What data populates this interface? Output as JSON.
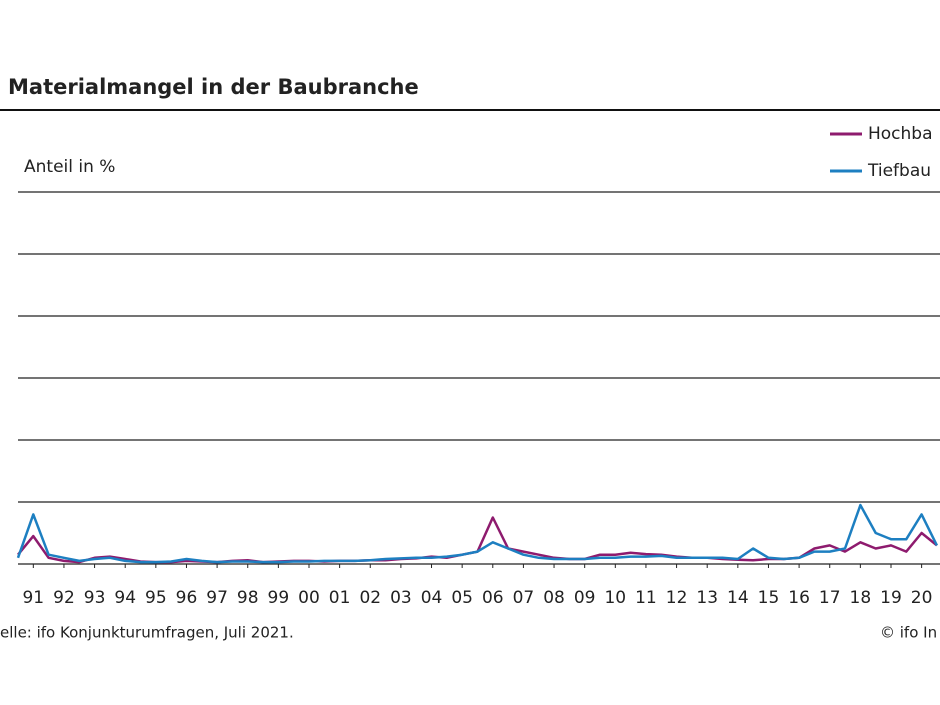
{
  "chart_data": {
    "type": "line",
    "title": "Materialmangel in der Baubranche",
    "y_label": "Anteil in %",
    "source": "elle: ifo Konjunkturumfragen, Juli 2021.",
    "copyright": "© ifo In",
    "legend": "top-right",
    "grid": true,
    "xlim": [
      1991,
      2021.1
    ],
    "ylim": [
      0,
      60
    ],
    "yticks": [
      0,
      10,
      20,
      30,
      40,
      50,
      60
    ],
    "xticks": [
      {
        "value": 1991.5,
        "label": "91"
      },
      {
        "value": 1992.5,
        "label": "92"
      },
      {
        "value": 1993.5,
        "label": "93"
      },
      {
        "value": 1994.5,
        "label": "94"
      },
      {
        "value": 1995.5,
        "label": "95"
      },
      {
        "value": 1996.5,
        "label": "96"
      },
      {
        "value": 1997.5,
        "label": "97"
      },
      {
        "value": 1998.5,
        "label": "98"
      },
      {
        "value": 1999.5,
        "label": "99"
      },
      {
        "value": 2000.5,
        "label": "00"
      },
      {
        "value": 2001.5,
        "label": "01"
      },
      {
        "value": 2002.5,
        "label": "02"
      },
      {
        "value": 2003.5,
        "label": "03"
      },
      {
        "value": 2004.5,
        "label": "04"
      },
      {
        "value": 2005.5,
        "label": "05"
      },
      {
        "value": 2006.5,
        "label": "06"
      },
      {
        "value": 2007.5,
        "label": "07"
      },
      {
        "value": 2008.5,
        "label": "08"
      },
      {
        "value": 2009.5,
        "label": "09"
      },
      {
        "value": 2010.5,
        "label": "10"
      },
      {
        "value": 2011.5,
        "label": "11"
      },
      {
        "value": 2012.5,
        "label": "12"
      },
      {
        "value": 2013.5,
        "label": "13"
      },
      {
        "value": 2014.5,
        "label": "14"
      },
      {
        "value": 2015.5,
        "label": "15"
      },
      {
        "value": 2016.5,
        "label": "16"
      },
      {
        "value": 2017.5,
        "label": "17"
      },
      {
        "value": 2018.5,
        "label": "18"
      },
      {
        "value": 2019.5,
        "label": "19"
      },
      {
        "value": 2020.5,
        "label": "20"
      }
    ],
    "x": [
      1991,
      1991.5,
      1992,
      1992.5,
      1993,
      1993.5,
      1994,
      1994.5,
      1995,
      1995.5,
      1996,
      1996.5,
      1997,
      1997.5,
      1998,
      1998.5,
      1999,
      1999.5,
      2000,
      2000.5,
      2001,
      2001.5,
      2002,
      2002.5,
      2003,
      2003.5,
      2004,
      2004.5,
      2005,
      2005.5,
      2006,
      2006.5,
      2007,
      2007.5,
      2008,
      2008.5,
      2009,
      2009.5,
      2010,
      2010.5,
      2011,
      2011.5,
      2012,
      2012.5,
      2013,
      2013.5,
      2014,
      2014.5,
      2015,
      2015.5,
      2016,
      2016.5,
      2017,
      2017.5,
      2018,
      2018.5,
      2019,
      2019.5,
      2020,
      2020.5,
      2021
    ],
    "series": [
      {
        "name": "Hochba",
        "color": "#8e1b6e",
        "values": [
          1.5,
          4.5,
          1,
          0.5,
          0.3,
          1,
          1.2,
          0.8,
          0.4,
          0.3,
          0.3,
          0.5,
          0.4,
          0.3,
          0.5,
          0.6,
          0.3,
          0.4,
          0.5,
          0.5,
          0.4,
          0.5,
          0.5,
          0.6,
          0.6,
          0.8,
          0.9,
          1.2,
          1,
          1.5,
          2,
          7.5,
          2.5,
          2,
          1.5,
          1,
          0.8,
          0.8,
          1.5,
          1.5,
          1.8,
          1.6,
          1.5,
          1.2,
          1,
          1,
          0.8,
          0.7,
          0.6,
          0.8,
          0.8,
          1,
          2.5,
          3,
          2,
          3.5,
          2.5,
          3,
          2,
          5,
          3
        ]
      },
      {
        "name": "Tiefbau",
        "color": "#1d7fc1",
        "values": [
          1,
          8,
          1.5,
          1,
          0.5,
          0.8,
          1,
          0.5,
          0.3,
          0.3,
          0.4,
          0.8,
          0.5,
          0.3,
          0.4,
          0.4,
          0.3,
          0.3,
          0.4,
          0.4,
          0.5,
          0.5,
          0.5,
          0.6,
          0.8,
          0.9,
          1,
          1,
          1.2,
          1.5,
          2,
          3.5,
          2.5,
          1.5,
          1,
          0.8,
          0.8,
          0.8,
          1,
          1,
          1.2,
          1.2,
          1.3,
          1,
          1,
          1,
          1,
          0.8,
          2.5,
          1,
          0.8,
          1,
          2,
          2,
          2.5,
          9.5,
          5,
          4,
          4,
          8,
          3
        ]
      }
    ]
  }
}
